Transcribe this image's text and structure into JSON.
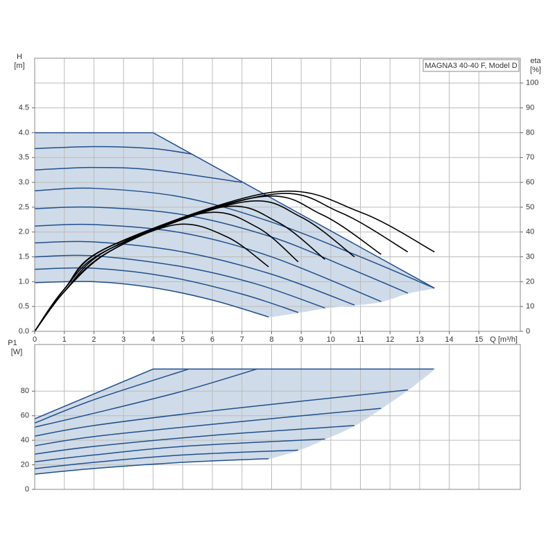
{
  "chart_data": [
    {
      "type": "line",
      "title": "MAGNA3 40-40 F, Model D",
      "y_label": "H",
      "y_unit": "[m]",
      "y2_label": "eta",
      "y2_unit": "[%]",
      "x_label": "Q [m³/h]",
      "xlim": [
        0,
        16.4
      ],
      "xticks": [
        0,
        1,
        2,
        3,
        4,
        5,
        6,
        7,
        8,
        9,
        10,
        11,
        12,
        13,
        14,
        15
      ],
      "ylim": [
        0,
        5.5
      ],
      "yticks": [
        {
          "value": 0,
          "label": "0.0"
        },
        0.5,
        {
          "value": 1,
          "label": "1.0"
        },
        1.5,
        {
          "value": 2,
          "label": "2.0"
        },
        2.5,
        {
          "value": 3,
          "label": "3.0"
        },
        3.5,
        {
          "value": 4,
          "label": "4.0"
        },
        4.5
      ],
      "y2lim": [
        0,
        110
      ],
      "y2ticks": [
        0,
        10,
        20,
        30,
        40,
        50,
        60,
        70,
        80,
        90,
        100
      ],
      "grid": true,
      "fill_color": "#cfdbe8",
      "series": [
        {
          "color": "#1f4e8c",
          "x": [
            0,
            4,
            13.5
          ],
          "values": [
            4.0,
            4.0,
            0.87
          ]
        },
        {
          "color": "#cfdbe8",
          "x": [
            7.9,
            8.9,
            9.8,
            10.8,
            11.7,
            12.6,
            13.5
          ],
          "values": [
            0.29,
            0.38,
            0.47,
            0.53,
            0.6,
            0.77,
            0.87
          ]
        },
        {
          "color": "#1f4e8c",
          "x": [
            0,
            2,
            4,
            6,
            7.9
          ],
          "values": [
            0.98,
            1.0,
            0.88,
            0.63,
            0.29
          ]
        },
        {
          "color": "#1f4e8c",
          "x": [
            0,
            2,
            4.5,
            7,
            8.9
          ],
          "values": [
            1.25,
            1.27,
            1.1,
            0.75,
            0.38
          ]
        },
        {
          "color": "#1f4e8c",
          "x": [
            0,
            2,
            5,
            7.5,
            9.8
          ],
          "values": [
            1.5,
            1.52,
            1.3,
            0.95,
            0.47
          ]
        },
        {
          "color": "#1f4e8c",
          "x": [
            0,
            2,
            5,
            8,
            10.8
          ],
          "values": [
            1.78,
            1.8,
            1.6,
            1.15,
            0.53
          ]
        },
        {
          "color": "#1f4e8c",
          "x": [
            0,
            2,
            5,
            8,
            11.7
          ],
          "values": [
            2.12,
            2.15,
            1.98,
            1.5,
            0.6
          ]
        },
        {
          "color": "#1f4e8c",
          "x": [
            0,
            2,
            5,
            8,
            10.5,
            12.6
          ],
          "values": [
            2.47,
            2.5,
            2.35,
            1.9,
            1.3,
            0.77
          ]
        },
        {
          "color": "#1f4e8c",
          "x": [
            0,
            2,
            5,
            8,
            11,
            13.5
          ],
          "values": [
            2.83,
            2.88,
            2.7,
            2.2,
            1.5,
            0.87
          ]
        },
        {
          "color": "#1f4e8c",
          "x": [
            0,
            2,
            4,
            7
          ],
          "values": [
            3.25,
            3.3,
            3.25,
            3.0
          ]
        },
        {
          "color": "#1f4e8c",
          "x": [
            0,
            2,
            4,
            5.3
          ],
          "values": [
            3.68,
            3.72,
            3.68,
            3.57
          ]
        },
        {
          "color": "#000000",
          "axis": "y2",
          "x": [
            0,
            1,
            2.5,
            4.8,
            6.5,
            7.9
          ],
          "values": [
            0,
            16,
            32,
            43,
            38,
            26
          ]
        },
        {
          "color": "#000000",
          "axis": "y2",
          "x": [
            0,
            1,
            2.5,
            5.7,
            7.5,
            8.9
          ],
          "values": [
            0,
            16,
            32,
            47.6,
            42,
            28
          ]
        },
        {
          "color": "#000000",
          "axis": "y2",
          "x": [
            0,
            1,
            2.5,
            6.3,
            8.2,
            9.8
          ],
          "values": [
            0,
            16,
            33,
            50,
            44,
            29
          ]
        },
        {
          "color": "#000000",
          "axis": "y2",
          "x": [
            0,
            1,
            2.5,
            7,
            9,
            10.8
          ],
          "values": [
            0,
            17,
            33,
            52,
            46,
            30
          ]
        },
        {
          "color": "#000000",
          "axis": "y2",
          "x": [
            0,
            1,
            2.5,
            7.5,
            9.7,
            11.7
          ],
          "values": [
            0,
            17,
            34,
            54,
            47,
            31
          ]
        },
        {
          "color": "#000000",
          "axis": "y2",
          "x": [
            0,
            1,
            2.5,
            7.9,
            10.3,
            12.6
          ],
          "values": [
            0,
            17,
            34,
            55,
            48,
            32
          ]
        },
        {
          "color": "#000000",
          "axis": "y2",
          "x": [
            0,
            1,
            2.5,
            8,
            11,
            13.5
          ],
          "values": [
            0,
            17,
            34,
            56,
            48,
            32
          ]
        }
      ]
    },
    {
      "type": "line",
      "y_label": "P1",
      "y_unit": "[W]",
      "xlim": [
        0,
        16.4
      ],
      "ylim": [
        0,
        118
      ],
      "yticks": [
        0,
        20,
        40,
        60,
        80
      ],
      "grid": true,
      "fill_color": "#cfdbe8",
      "series": [
        {
          "color": "#1f4e8c",
          "x": [
            0,
            4,
            13.5
          ],
          "values": [
            57.5,
            98,
            98
          ]
        },
        {
          "color": "#cfdbe8",
          "x": [
            7.9,
            8.9,
            9.8,
            10.8,
            11.7,
            12.6,
            13.5
          ],
          "values": [
            25,
            32,
            41,
            52,
            66,
            81,
            98
          ]
        },
        {
          "color": "#1f4e8c",
          "x": [
            0,
            2,
            5,
            7.9
          ],
          "values": [
            12.4,
            17,
            22,
            25
          ]
        },
        {
          "color": "#1f4e8c",
          "x": [
            0,
            2,
            5,
            8.9
          ],
          "values": [
            16.9,
            22,
            28,
            32
          ]
        },
        {
          "color": "#1f4e8c",
          "x": [
            0,
            2,
            5,
            9.8
          ],
          "values": [
            22.5,
            28,
            35,
            41
          ]
        },
        {
          "color": "#1f4e8c",
          "x": [
            0,
            2,
            6,
            10.8
          ],
          "values": [
            28.7,
            35,
            44,
            52
          ]
        },
        {
          "color": "#1f4e8c",
          "x": [
            0,
            2,
            6,
            11.7
          ],
          "values": [
            35.5,
            43,
            53,
            66
          ]
        },
        {
          "color": "#1f4e8c",
          "x": [
            0,
            2,
            6,
            12.6
          ],
          "values": [
            43.4,
            52,
            64,
            81
          ]
        },
        {
          "color": "#1f4e8c",
          "x": [
            0,
            2,
            5,
            7.5
          ],
          "values": [
            50.7,
            62,
            80,
            98
          ]
        },
        {
          "color": "#1f4e8c",
          "x": [
            0,
            2,
            5.2
          ],
          "values": [
            54,
            73,
            98
          ]
        }
      ]
    }
  ]
}
